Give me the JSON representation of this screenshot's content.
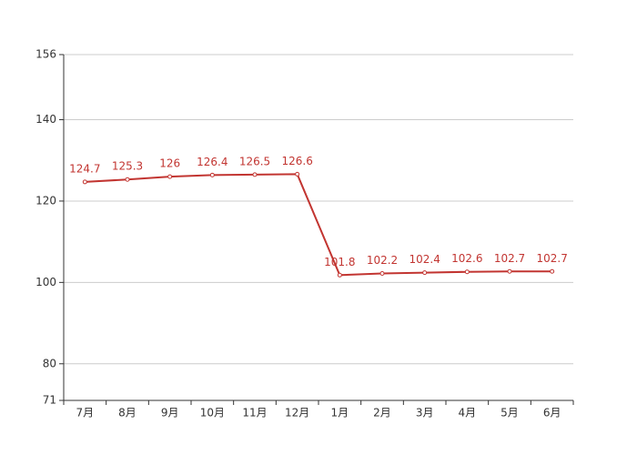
{
  "chart_data": {
    "type": "line",
    "categories": [
      "7月",
      "8月",
      "9月",
      "10月",
      "11月",
      "12月",
      "1月",
      "2月",
      "3月",
      "4月",
      "5月",
      "6月"
    ],
    "values": [
      124.7,
      125.3,
      126,
      126.4,
      126.5,
      126.6,
      101.8,
      102.2,
      102.4,
      102.6,
      102.7,
      102.7
    ],
    "color": "#c23531",
    "ylim": [
      71,
      156
    ],
    "yticks": [
      71,
      80,
      100,
      120,
      140,
      156
    ],
    "grid": true
  }
}
